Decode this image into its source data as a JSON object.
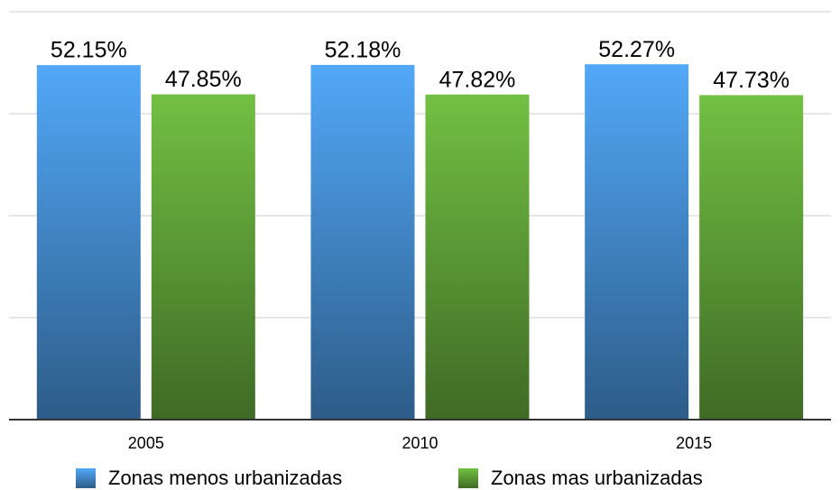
{
  "chart_data": {
    "type": "bar",
    "categories": [
      "2005",
      "2010",
      "2015"
    ],
    "series": [
      {
        "name": "Zonas menos urbanizadas",
        "color": "#52a8f8",
        "values": [
          52.15,
          52.18,
          52.27
        ],
        "value_labels": [
          "52.15%",
          "52.18%",
          "52.27%"
        ]
      },
      {
        "name": "Zonas mas urbanizadas",
        "color": "#72c043",
        "values": [
          47.85,
          47.82,
          47.73
        ],
        "value_labels": [
          "47.85%",
          "47.82%",
          "47.73%"
        ]
      }
    ],
    "ylim": [
      0,
      60
    ],
    "yticks": [
      0,
      15,
      30,
      45,
      60
    ],
    "grid": true,
    "legend": "bottom"
  }
}
